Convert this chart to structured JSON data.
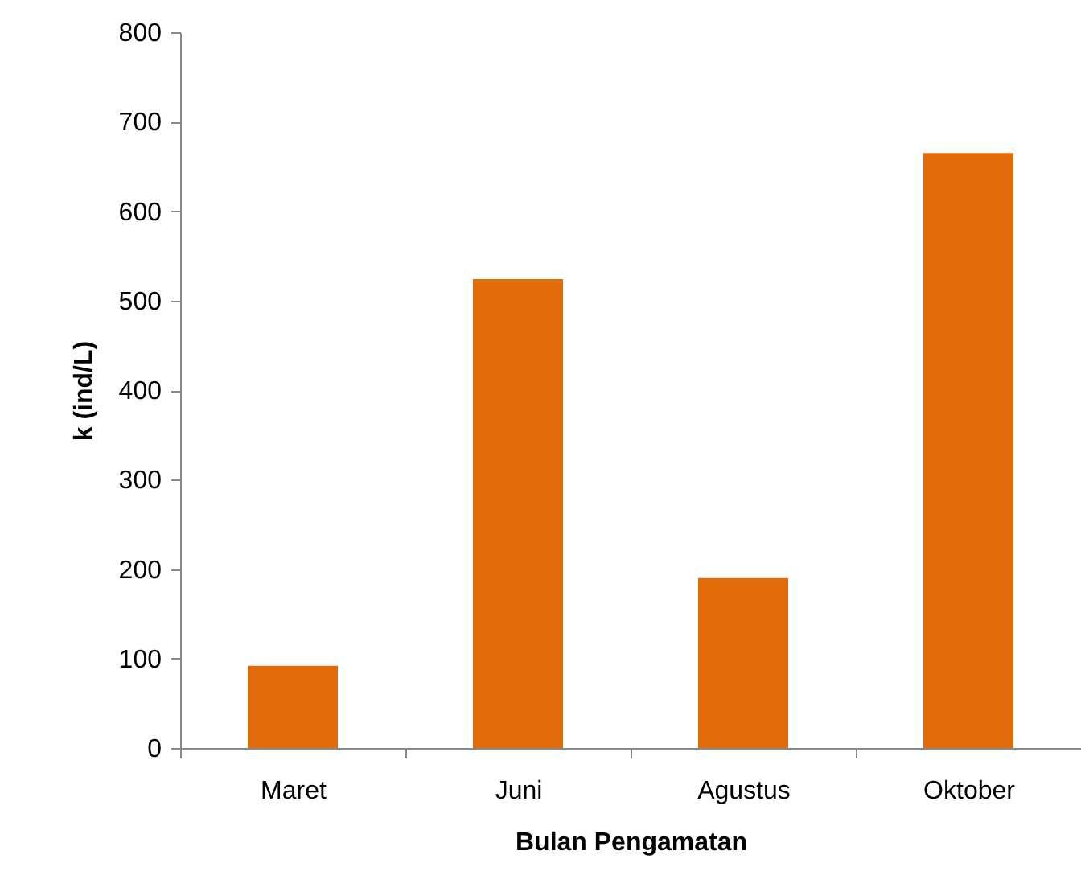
{
  "chart_data": {
    "type": "bar",
    "xlabel": "Bulan Pengamatan",
    "ylabel": "k (ind/L)",
    "categories": [
      "Maret",
      "Juni",
      "Agustus",
      "Oktober"
    ],
    "values": [
      92,
      524,
      190,
      665
    ],
    "color": "#e36c0a",
    "ylim": [
      0,
      800
    ],
    "yticks": [
      0,
      100,
      200,
      300,
      400,
      500,
      600,
      700,
      800
    ],
    "grid": false
  }
}
